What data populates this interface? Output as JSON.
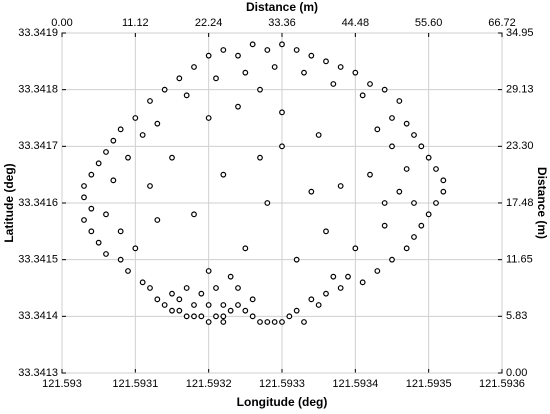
{
  "chart_data": {
    "type": "scatter",
    "xlabel": "Longitude (deg)",
    "ylabel": "Latitude (deg)",
    "x2label": "Distance (m)",
    "y2label": "Distance (m)",
    "xlim": [
      121.593,
      121.5936
    ],
    "xticks": [
      121.593,
      121.5931,
      121.5932,
      121.5933,
      121.5934,
      121.5935,
      121.5936
    ],
    "ylim": [
      33.3413,
      33.3419
    ],
    "yticks": [
      33.3413,
      33.3414,
      33.3415,
      33.3416,
      33.3417,
      33.3418,
      33.3419
    ],
    "x2lim": [
      0,
      66.72
    ],
    "x2ticks": [
      {
        "value": 0,
        "label": "0.00"
      },
      11.12,
      22.24,
      33.36,
      44.48,
      {
        "value": 55.6,
        "label": "55.60"
      },
      66.72
    ],
    "y2lim": [
      0,
      34.95
    ],
    "y2ticks": [
      {
        "value": 0,
        "label": "0.00"
      },
      5.83,
      11.65,
      17.48,
      {
        "value": 23.3,
        "label": "23.30"
      },
      29.13,
      34.95
    ],
    "grid": true,
    "color": "#000000",
    "x": [
      121.59318,
      121.5932,
      121.59322,
      121.59324,
      121.59326,
      121.59328,
      121.5933,
      121.59332,
      121.59334,
      121.59336,
      121.59338,
      121.5934,
      121.59342,
      121.59344,
      121.59346,
      121.59316,
      121.59314,
      121.59312,
      121.59325,
      121.59329,
      121.59333,
      121.59337,
      121.59341,
      121.59321,
      121.59317,
      121.59327,
      121.59345,
      121.59347,
      121.59348,
      121.59349,
      121.5931,
      121.59308,
      121.59307,
      121.59306,
      121.59305,
      121.59304,
      121.59303,
      121.59303,
      121.59304,
      121.59303,
      121.59304,
      121.59305,
      121.59306,
      121.59308,
      121.59309,
      121.59311,
      121.59307,
      121.59309,
      121.59311,
      121.59313,
      121.59306,
      121.59308,
      121.5931,
      121.5935,
      121.59351,
      121.59352,
      121.59352,
      121.59351,
      121.5935,
      121.59349,
      121.59348,
      121.59347,
      121.59345,
      121.59343,
      121.59341,
      121.59346,
      121.59347,
      121.59348,
      121.59344,
      121.59345,
      121.59343,
      121.59312,
      121.59313,
      121.59314,
      121.59315,
      121.59316,
      121.59317,
      121.59318,
      121.59319,
      121.5932,
      121.59321,
      121.59322,
      121.59323,
      121.59324,
      121.59325,
      121.59326,
      121.59327,
      121.59328,
      121.59329,
      121.5933,
      121.59331,
      121.59332,
      121.59334,
      121.59336,
      121.59338,
      121.59316,
      121.59318,
      121.5932,
      121.59322,
      121.59319,
      121.59321,
      121.59323,
      121.5932,
      121.59324,
      121.59326,
      121.59317,
      121.59315,
      121.59322,
      121.59333,
      121.59335,
      121.59337,
      121.59339,
      121.5932,
      121.59324,
      121.5933,
      121.59335,
      121.59315,
      121.59322,
      121.59328,
      121.59338,
      121.59342,
      121.59318,
      121.59313,
      121.59325,
      121.59332,
      121.59336,
      121.5934,
      121.5933,
      121.59312,
      121.59344,
      121.59327,
      121.59334
    ],
    "values": [
      33.34184,
      33.34186,
      33.34187,
      33.34186,
      33.34188,
      33.34187,
      33.34188,
      33.34187,
      33.34186,
      33.34185,
      33.34184,
      33.34183,
      33.34181,
      33.3418,
      33.34178,
      33.34182,
      33.3418,
      33.34178,
      33.34183,
      33.34184,
      33.34183,
      33.34181,
      33.34179,
      33.34182,
      33.34179,
      33.3418,
      33.34175,
      33.34174,
      33.34172,
      33.3417,
      33.34175,
      33.34173,
      33.34171,
      33.34169,
      33.34167,
      33.34165,
      33.34163,
      33.34161,
      33.34159,
      33.34157,
      33.34155,
      33.34153,
      33.34151,
      33.3415,
      33.34148,
      33.34146,
      33.34164,
      33.34168,
      33.34172,
      33.34174,
      33.34158,
      33.34155,
      33.34152,
      33.34168,
      33.34166,
      33.34164,
      33.34162,
      33.3416,
      33.34158,
      33.34156,
      33.34154,
      33.34152,
      33.3415,
      33.34148,
      33.34146,
      33.34162,
      33.34166,
      33.3416,
      33.34156,
      33.3417,
      33.34173,
      33.34145,
      33.34143,
      33.34142,
      33.34141,
      33.34141,
      33.3414,
      33.3414,
      33.3414,
      33.34139,
      33.3414,
      33.3414,
      33.34141,
      33.34142,
      33.34141,
      33.3414,
      33.34139,
      33.34139,
      33.34139,
      33.34139,
      33.3414,
      33.34141,
      33.34143,
      33.34144,
      33.34145,
      33.34143,
      33.34142,
      33.34142,
      33.34142,
      33.34144,
      33.34145,
      33.34147,
      33.34148,
      33.34145,
      33.34143,
      33.34145,
      33.34144,
      33.34139,
      33.34139,
      33.34142,
      33.34147,
      33.34147,
      33.34175,
      33.34177,
      33.34176,
      33.34172,
      33.34168,
      33.34165,
      33.3416,
      33.34163,
      33.34165,
      33.34158,
      33.34157,
      33.34152,
      33.3415,
      33.34155,
      33.34152,
      33.3417,
      33.34163,
      33.3416,
      33.34168,
      33.34162
    ]
  }
}
